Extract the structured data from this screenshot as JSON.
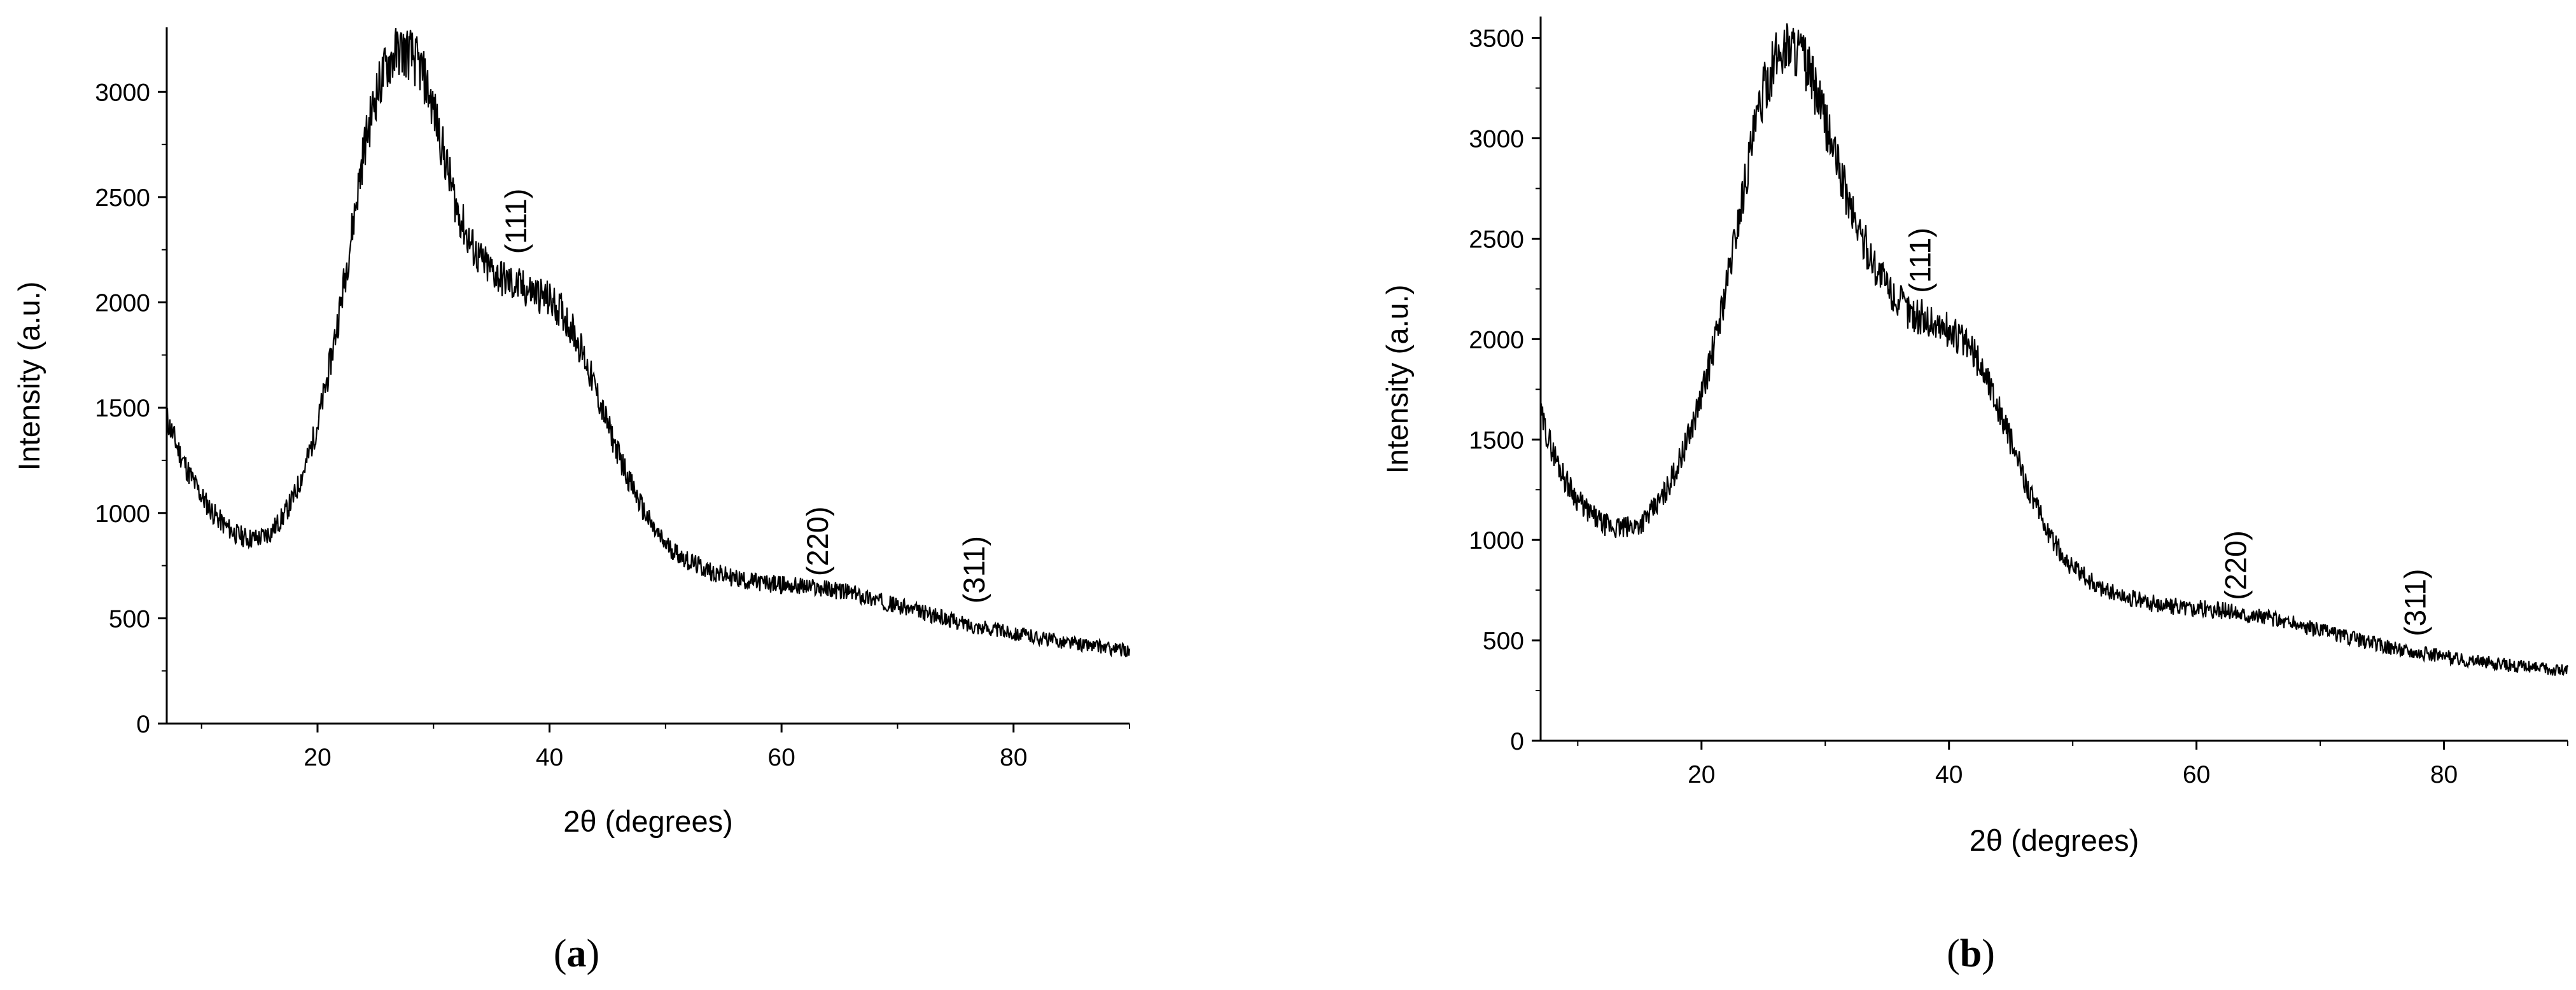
{
  "chart_data": [
    {
      "type": "line",
      "panel_label": "a",
      "xlabel": "2θ (degrees)",
      "ylabel": "Intensity (a.u.)",
      "xlim": [
        7,
        90
      ],
      "ylim": [
        0,
        3300
      ],
      "xticks": [
        20,
        40,
        60,
        80
      ],
      "yticks": [
        0,
        500,
        1000,
        1500,
        2000,
        2500,
        3000
      ],
      "grid": false,
      "series": [
        {
          "x": [
            7,
            8,
            9,
            10,
            11,
            12,
            13,
            14,
            15,
            16,
            17,
            18,
            19,
            20,
            21,
            22,
            23,
            24,
            25,
            26,
            27,
            28,
            29,
            30,
            31,
            32,
            33,
            34,
            35,
            36,
            37,
            38,
            39,
            40,
            41,
            42,
            43,
            44,
            45,
            46,
            47,
            48,
            49,
            50,
            52,
            54,
            56,
            58,
            60,
            62,
            64,
            66,
            68,
            70,
            72,
            74,
            76,
            78,
            80,
            82,
            84,
            86,
            88,
            90
          ],
          "y": [
            1450,
            1300,
            1180,
            1080,
            1000,
            940,
            900,
            880,
            880,
            910,
            980,
            1080,
            1230,
            1420,
            1680,
            1990,
            2350,
            2730,
            2980,
            3130,
            3200,
            3180,
            3100,
            2920,
            2680,
            2450,
            2300,
            2200,
            2150,
            2110,
            2080,
            2060,
            2040,
            2010,
            1960,
            1870,
            1740,
            1580,
            1420,
            1270,
            1140,
            1020,
            920,
            850,
            770,
            720,
            690,
            670,
            660,
            650,
            640,
            620,
            590,
            560,
            530,
            500,
            470,
            450,
            430,
            410,
            390,
            375,
            360,
            345
          ]
        }
      ],
      "annotations": [
        {
          "text": "(111)",
          "x": 38,
          "y": 2230
        },
        {
          "text": "(220)",
          "x": 64,
          "y": 700
        },
        {
          "text": "(311)",
          "x": 77.5,
          "y": 570
        }
      ]
    },
    {
      "type": "line",
      "panel_label": "b",
      "xlabel": "2θ (degrees)",
      "ylabel": "Intensity (a.u.)",
      "xlim": [
        7,
        90
      ],
      "ylim": [
        0,
        3600
      ],
      "xticks": [
        20,
        40,
        60,
        80
      ],
      "yticks": [
        0,
        500,
        1000,
        1500,
        2000,
        2500,
        3000,
        3500
      ],
      "grid": false,
      "series": [
        {
          "x": [
            7,
            8,
            9,
            10,
            11,
            12,
            13,
            14,
            15,
            16,
            17,
            18,
            19,
            20,
            21,
            22,
            23,
            24,
            25,
            26,
            27,
            28,
            29,
            30,
            31,
            32,
            33,
            34,
            35,
            36,
            37,
            38,
            39,
            40,
            41,
            42,
            43,
            44,
            45,
            46,
            47,
            48,
            49,
            50,
            52,
            54,
            56,
            58,
            60,
            62,
            64,
            66,
            68,
            70,
            72,
            74,
            76,
            78,
            80,
            82,
            84,
            86,
            88,
            90
          ],
          "y": [
            1620,
            1440,
            1300,
            1200,
            1130,
            1080,
            1060,
            1060,
            1080,
            1140,
            1230,
            1360,
            1520,
            1720,
            1960,
            2260,
            2600,
            2950,
            3230,
            3400,
            3470,
            3430,
            3280,
            3080,
            2870,
            2660,
            2500,
            2370,
            2260,
            2180,
            2130,
            2100,
            2070,
            2040,
            2000,
            1930,
            1820,
            1660,
            1490,
            1320,
            1170,
            1040,
            940,
            860,
            770,
            720,
            690,
            670,
            660,
            650,
            630,
            610,
            580,
            550,
            520,
            490,
            460,
            440,
            420,
            400,
            385,
            370,
            360,
            350
          ]
        }
      ],
      "annotations": [
        {
          "text": "(111)",
          "x": 38.5,
          "y": 2230
        },
        {
          "text": "(220)",
          "x": 64,
          "y": 700
        },
        {
          "text": "(311)",
          "x": 78.5,
          "y": 520
        }
      ]
    }
  ]
}
